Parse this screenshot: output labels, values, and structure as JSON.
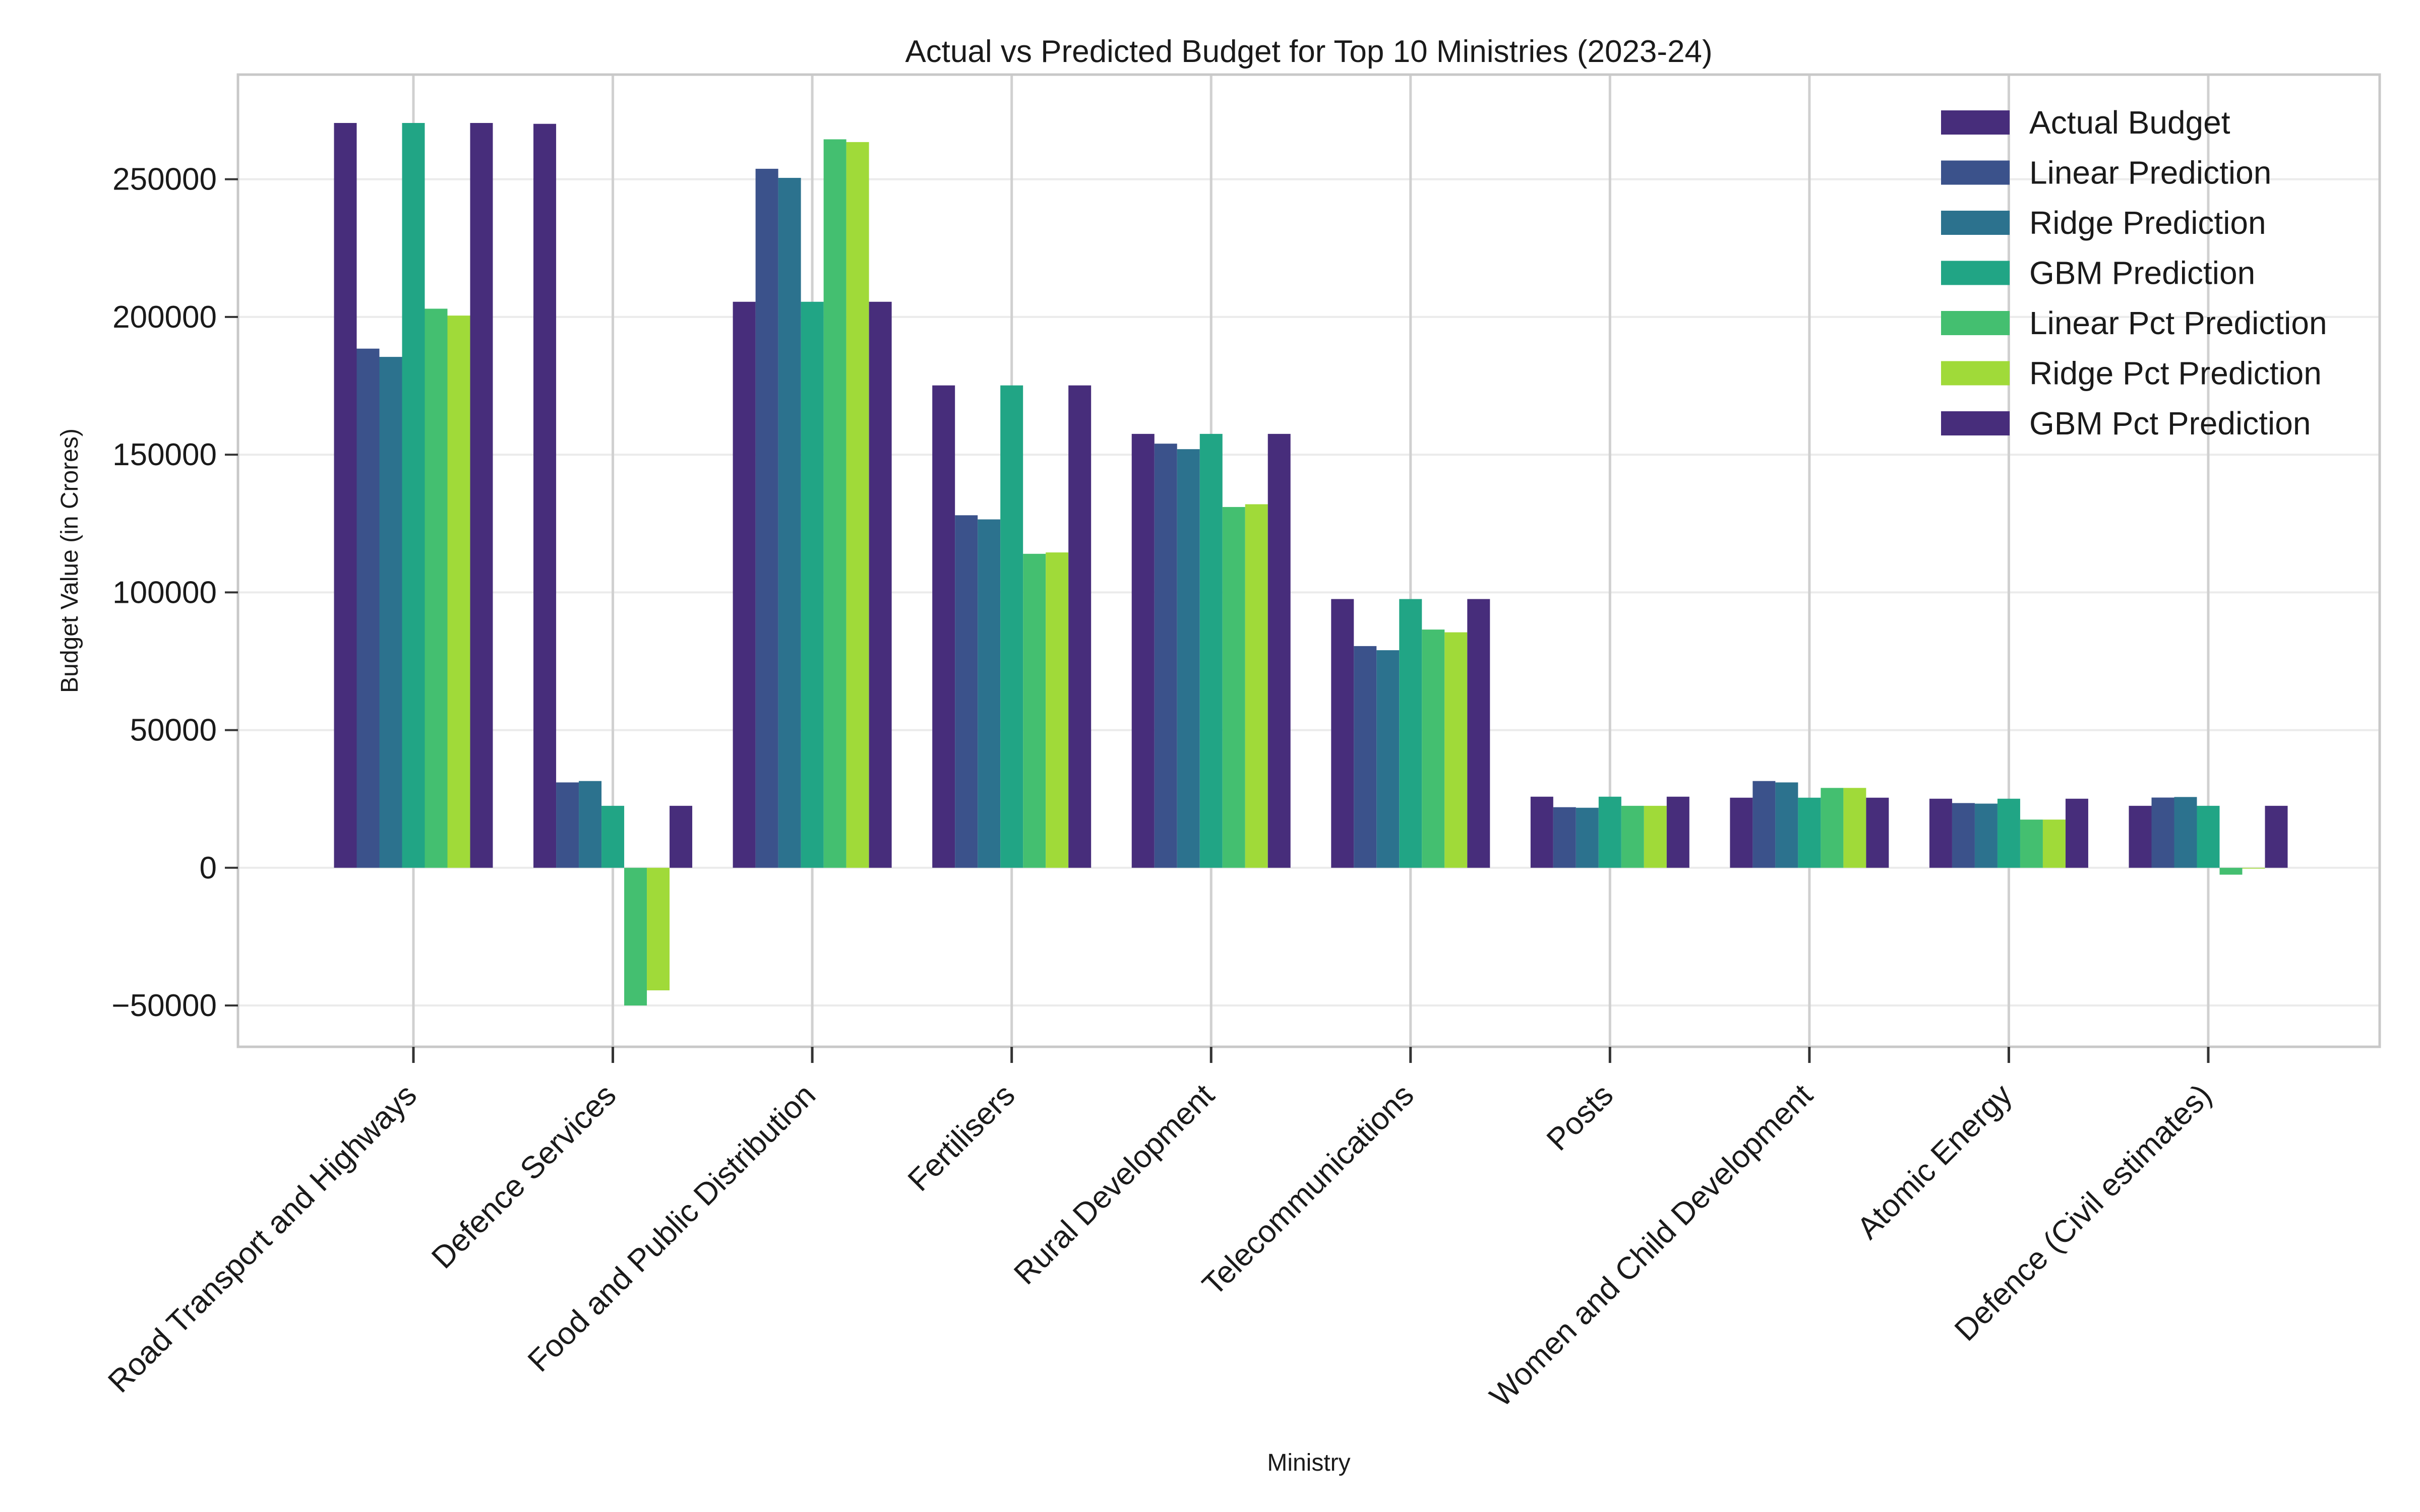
{
  "chart_data": {
    "type": "bar",
    "title": "Actual vs Predicted Budget for Top 10 Ministries (2023-24)",
    "xlabel": "Ministry",
    "ylabel": "Budget Value (in Crores)",
    "ylim": [
      -65000,
      288000
    ],
    "yticks": [
      -50000,
      0,
      50000,
      100000,
      150000,
      200000,
      250000
    ],
    "ytick_labels": [
      "−50000",
      "0",
      "50000",
      "100000",
      "150000",
      "200000",
      "250000"
    ],
    "grid": true,
    "legend_position": "top-right",
    "categories": [
      "Road Transport and Highways",
      "Defence Services",
      "Food and Public Distribution",
      "Fertilisers",
      "Rural Development",
      "Telecommunications",
      "Posts",
      "Women and Child Development",
      "Atomic Energy",
      "Defence (Civil estimates)"
    ],
    "series": [
      {
        "name": "Actual Budget",
        "color": "#472d7b",
        "values": [
          270435,
          270120,
          205513,
          175148,
          157545,
          97579,
          25814,
          25449,
          25079,
          22500
        ]
      },
      {
        "name": "Linear Prediction",
        "color": "#3b528b",
        "values": [
          188500,
          31000,
          253800,
          128000,
          154000,
          80500,
          22000,
          31500,
          23500,
          25500
        ]
      },
      {
        "name": "Ridge Prediction",
        "color": "#2c728e",
        "values": [
          185500,
          31500,
          250500,
          126500,
          152000,
          79000,
          21800,
          31000,
          23300,
          25700
        ]
      },
      {
        "name": "GBM Prediction",
        "color": "#21a585",
        "values": [
          270435,
          22500,
          205513,
          175148,
          157545,
          97579,
          25814,
          25449,
          25079,
          22500
        ]
      },
      {
        "name": "Linear Pct Prediction",
        "color": "#44bf70",
        "values": [
          203000,
          -50000,
          264500,
          114000,
          131000,
          86500,
          22500,
          29000,
          17500,
          -2500
        ]
      },
      {
        "name": "Ridge Pct Prediction",
        "color": "#a0da39",
        "values": [
          200500,
          -44500,
          263500,
          114500,
          132000,
          85500,
          22500,
          29000,
          17500,
          -300
        ]
      },
      {
        "name": "GBM Pct Prediction",
        "color": "#472d7b",
        "values": [
          270435,
          22500,
          205513,
          175148,
          157545,
          97579,
          25814,
          25449,
          25079,
          22500
        ]
      }
    ]
  }
}
